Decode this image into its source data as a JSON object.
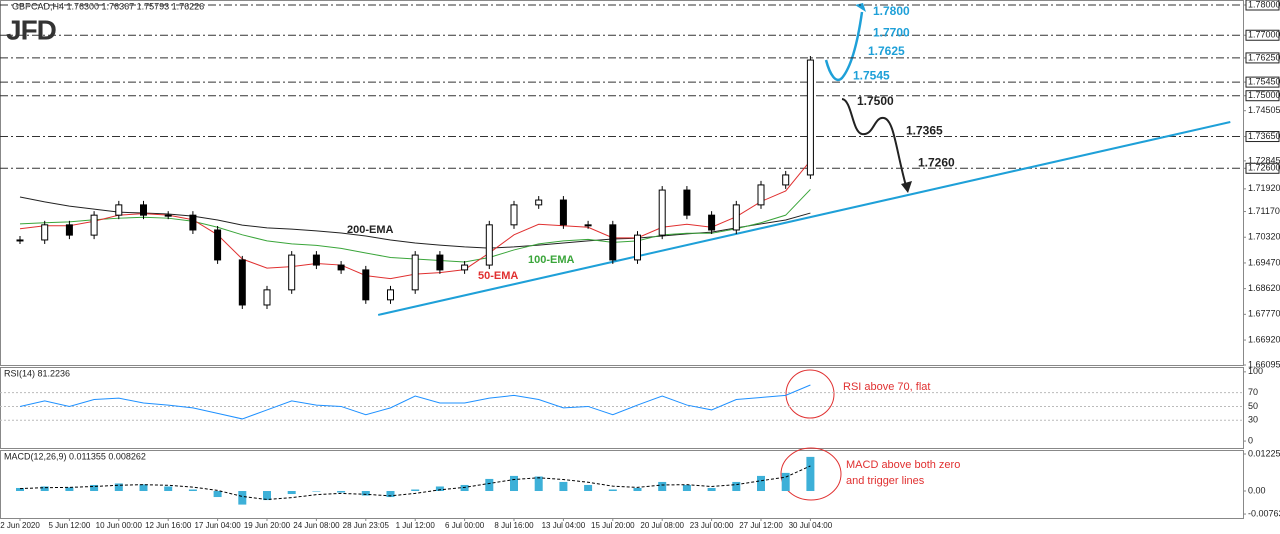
{
  "header": {
    "symbol": "GBPCAD,H4  1.76300 1.76367 1.75793 1.76226",
    "logo": "JFD"
  },
  "chart_data": {
    "type": "candlestick",
    "categories": [
      "2 Jun 2020",
      null,
      "5 Jun 12:00",
      null,
      "10 Jun 00:00",
      null,
      "12 Jun 16:00",
      null,
      "17 Jun 04:00",
      null,
      "19 Jun 20:00",
      null,
      "24 Jun 08:00",
      null,
      "28 Jun 23:05",
      null,
      "1 Jul 12:00",
      null,
      "6 Jul 00:00",
      null,
      "8 Jul 16:00",
      null,
      "13 Jul 04:00",
      null,
      "15 Jul 20:00",
      null,
      "20 Jul 08:00",
      null,
      "23 Jul 00:00",
      null,
      "27 Jul 12:00",
      null,
      "30 Jul 04:00"
    ],
    "values": [
      1.7023,
      1.7073,
      1.7039,
      1.7105,
      1.7139,
      1.7105,
      1.7105,
      1.7056,
      1.6957,
      1.6808,
      1.6858,
      1.6973,
      1.694,
      1.6924,
      1.6825,
      1.6858,
      1.6973,
      1.6924,
      1.694,
      1.7073,
      1.7139,
      1.7155,
      1.7073,
      1.7073,
      1.6957,
      1.7039,
      1.7188,
      1.7105,
      1.7056,
      1.7139,
      1.7205,
      1.7238,
      1.7618
    ],
    "series": [
      {
        "name": "200-EMA",
        "color": "#222222",
        "values": [
          1.7165,
          1.7149,
          1.7135,
          1.7125,
          1.7115,
          1.7112,
          1.7109,
          1.7102,
          1.7089,
          1.7072,
          1.7063,
          1.7059,
          1.7053,
          1.7046,
          1.7036,
          1.7023,
          1.7013,
          1.7006,
          1.7,
          1.6996,
          1.7,
          1.7006,
          1.7013,
          1.702,
          1.7026,
          1.7029,
          1.7036,
          1.7043,
          1.7049,
          1.7063,
          1.7076,
          1.7089,
          1.7112
        ]
      },
      {
        "name": "100-EMA",
        "color": "#3aa53a",
        "values": [
          1.7076,
          1.708,
          1.7083,
          1.709,
          1.7095,
          1.7098,
          1.7095,
          1.7085,
          1.7065,
          1.704,
          1.702,
          1.701,
          1.7005,
          1.6995,
          1.698,
          1.6965,
          1.696,
          1.6955,
          1.695,
          1.6965,
          1.699,
          1.701,
          1.702,
          1.7025,
          1.7015,
          1.702,
          1.704,
          1.7045,
          1.7045,
          1.706,
          1.708,
          1.7105,
          1.719
        ]
      },
      {
        "name": "50-EMA",
        "color": "#e03030",
        "values": [
          1.706,
          1.707,
          1.707,
          1.7085,
          1.7105,
          1.711,
          1.7105,
          1.709,
          1.704,
          1.696,
          1.693,
          1.6935,
          1.6945,
          1.694,
          1.6905,
          1.6895,
          1.691,
          1.6915,
          1.6925,
          1.698,
          1.704,
          1.7075,
          1.707,
          1.7065,
          1.703,
          1.703,
          1.7065,
          1.7075,
          1.7065,
          1.71,
          1.715,
          1.7185,
          1.7285
        ]
      }
    ],
    "trendline": {
      "x": [
        14.5,
        49
      ],
      "y": [
        1.6775,
        1.7413
      ],
      "color": "#1ea0d8"
    },
    "ylim": [
      1.66095,
      1.78
    ],
    "yticks": [
      {
        "value": 1.78,
        "label": "1.78000"
      },
      {
        "value": 1.77,
        "label": "1.77000"
      },
      {
        "value": 1.7625,
        "label": "1.76250"
      },
      {
        "value": 1.7545,
        "label": "1.75450"
      },
      {
        "value": 1.75,
        "label": "1.75000"
      },
      1.74505,
      {
        "value": 1.7365,
        "label": "1.73650"
      },
      1.72845,
      {
        "value": 1.726,
        "label": "1.72600"
      },
      {
        "value": 1.7192,
        "label": "1.71920"
      },
      {
        "value": 1.7117,
        "label": "1.71170"
      },
      {
        "value": 1.7032,
        "label": "1.70320"
      },
      {
        "value": 1.6947,
        "label": "1.69470"
      },
      {
        "value": 1.6862,
        "label": "1.68620"
      },
      {
        "value": 1.6777,
        "label": "1.67770"
      },
      {
        "value": 1.6692,
        "label": "1.66920"
      },
      1.66095
    ],
    "levels": [
      1.78,
      1.77,
      1.7625,
      1.7545,
      1.75,
      1.7365,
      1.726
    ],
    "annotations": [
      {
        "value": 1.78,
        "label": "1.7800",
        "color": "#1ea0d8"
      },
      {
        "value": 1.77,
        "label": "1.7700",
        "color": "#1ea0d8"
      },
      {
        "value": 1.7625,
        "label": "1.7625",
        "color": "#1ea0d8"
      },
      {
        "value": 1.7545,
        "label": "1.7545",
        "color": "#1ea0d8"
      },
      {
        "value": 1.75,
        "label": "1.7500",
        "color": "#222222"
      },
      {
        "value": 1.7365,
        "label": "1.7365",
        "color": "#222222"
      },
      {
        "value": 1.726,
        "label": "1.7260",
        "color": "#222222"
      }
    ],
    "rsi": {
      "label": "RSI(14) 81.2236",
      "color": "#1e90ff",
      "values": [
        50,
        58,
        50,
        60,
        62,
        55,
        52,
        48,
        40,
        32,
        45,
        58,
        52,
        50,
        38,
        48,
        65,
        55,
        55,
        62,
        66,
        60,
        48,
        50,
        38,
        52,
        65,
        52,
        45,
        60,
        63,
        66,
        81
      ],
      "ylim": [
        -10,
        107
      ],
      "yticks": [
        100,
        70,
        50,
        30,
        0
      ],
      "annotation": "RSI above 70, flat"
    },
    "macd": {
      "label": "MACD(12,26,9) 0.011355 0.008262",
      "color": "#3db0d8",
      "values": [
        0.001,
        0.0015,
        0.0012,
        0.002,
        0.0025,
        0.0022,
        0.0015,
        0.0005,
        -0.002,
        -0.0045,
        -0.003,
        -0.001,
        0,
        -0.0005,
        -0.0015,
        -0.002,
        0.0005,
        0.0015,
        0.002,
        0.004,
        0.005,
        0.0048,
        0.003,
        0.002,
        0.0005,
        0.001,
        0.003,
        0.002,
        0.001,
        0.003,
        0.005,
        0.006,
        0.0113
      ],
      "signal": [
        0.0008,
        0.0011,
        0.0012,
        0.0015,
        0.0019,
        0.0021,
        0.0019,
        0.0013,
        0.0002,
        -0.0018,
        -0.0028,
        -0.0022,
        -0.0012,
        -0.0008,
        -0.0011,
        -0.0016,
        -0.0008,
        0.0004,
        0.0012,
        0.0025,
        0.0038,
        0.0044,
        0.0038,
        0.0029,
        0.0016,
        0.0012,
        0.002,
        0.0021,
        0.0015,
        0.0021,
        0.0034,
        0.0046,
        0.0083
      ],
      "ylim": [
        -0.00894,
        0.01358
      ],
      "yticks": [
        0.012254,
        {
          "value": 0,
          "label": "0.00"
        },
        -0.007634
      ],
      "annotation": [
        "MACD above both zero",
        "and trigger lines"
      ]
    }
  }
}
